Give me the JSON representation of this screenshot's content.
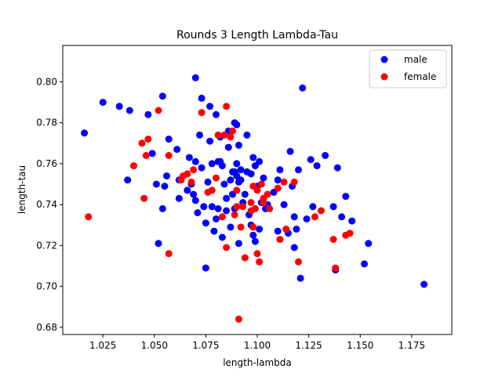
{
  "chart_data": {
    "type": "scatter",
    "title": "Rounds 3 Length Lambda-Tau",
    "xlabel": "length-lambda",
    "ylabel": "length-tau",
    "xlim": [
      1.0055,
      1.1945
    ],
    "ylim": [
      0.6765,
      0.8178
    ],
    "xticks": [
      "1.025",
      "1.050",
      "1.075",
      "1.100",
      "1.125",
      "1.150",
      "1.175"
    ],
    "yticks": [
      "0.68",
      "0.70",
      "0.72",
      "0.74",
      "0.76",
      "0.78",
      "0.80"
    ],
    "grid": false,
    "legend_position": "top-right",
    "series": [
      {
        "name": "male",
        "color": "#0000ff",
        "points": [
          [
            1.016,
            0.775
          ],
          [
            1.025,
            0.79
          ],
          [
            1.033,
            0.788
          ],
          [
            1.038,
            0.786
          ],
          [
            1.037,
            0.752
          ],
          [
            1.047,
            0.784
          ],
          [
            1.049,
            0.765
          ],
          [
            1.051,
            0.75
          ],
          [
            1.054,
            0.793
          ],
          [
            1.056,
            0.754
          ],
          [
            1.057,
            0.772
          ],
          [
            1.055,
            0.749
          ],
          [
            1.052,
            0.721
          ],
          [
            1.054,
            0.738
          ],
          [
            1.061,
            0.767
          ],
          [
            1.062,
            0.752
          ],
          [
            1.062,
            0.743
          ],
          [
            1.066,
            0.747
          ],
          [
            1.067,
            0.763
          ],
          [
            1.068,
            0.75
          ],
          [
            1.07,
            0.802
          ],
          [
            1.07,
            0.761
          ],
          [
            1.069,
            0.745
          ],
          [
            1.07,
            0.742
          ],
          [
            1.071,
            0.736
          ],
          [
            1.072,
            0.774
          ],
          [
            1.073,
            0.792
          ],
          [
            1.073,
            0.758
          ],
          [
            1.074,
            0.739
          ],
          [
            1.075,
            0.731
          ],
          [
            1.075,
            0.709
          ],
          [
            1.076,
            0.751
          ],
          [
            1.077,
            0.788
          ],
          [
            1.077,
            0.771
          ],
          [
            1.078,
            0.76
          ],
          [
            1.078,
            0.739
          ],
          [
            1.079,
            0.727
          ],
          [
            1.08,
            0.733
          ],
          [
            1.08,
            0.784
          ],
          [
            1.081,
            0.761
          ],
          [
            1.081,
            0.738
          ],
          [
            1.082,
            0.773
          ],
          [
            1.082,
            0.761
          ],
          [
            1.083,
            0.759
          ],
          [
            1.083,
            0.724
          ],
          [
            1.084,
            0.75
          ],
          [
            1.085,
            0.743
          ],
          [
            1.085,
            0.737
          ],
          [
            1.086,
            0.768
          ],
          [
            1.086,
            0.776
          ],
          [
            1.087,
            0.752
          ],
          [
            1.087,
            0.729
          ],
          [
            1.088,
            0.756
          ],
          [
            1.088,
            0.745
          ],
          [
            1.089,
            0.78
          ],
          [
            1.089,
            0.756
          ],
          [
            1.089,
            0.738
          ],
          [
            1.09,
            0.779
          ],
          [
            1.09,
            0.76
          ],
          [
            1.09,
            0.754
          ],
          [
            1.091,
            0.751
          ],
          [
            1.091,
            0.769
          ],
          [
            1.091,
            0.721
          ],
          [
            1.092,
            0.757
          ],
          [
            1.092,
            0.752
          ],
          [
            1.093,
            0.741
          ],
          [
            1.094,
            0.745
          ],
          [
            1.095,
            0.774
          ],
          [
            1.095,
            0.756
          ],
          [
            1.096,
            0.735
          ],
          [
            1.097,
            0.755
          ],
          [
            1.097,
            0.73
          ],
          [
            1.098,
            0.763
          ],
          [
            1.098,
            0.725
          ],
          [
            1.099,
            0.759
          ],
          [
            1.099,
            0.722
          ],
          [
            1.1,
            0.749
          ],
          [
            1.101,
            0.761
          ],
          [
            1.101,
            0.728
          ],
          [
            1.102,
            0.741
          ],
          [
            1.103,
            0.753
          ],
          [
            1.104,
            0.738
          ],
          [
            1.105,
            0.74
          ],
          [
            1.108,
            0.746
          ],
          [
            1.11,
            0.752
          ],
          [
            1.11,
            0.727
          ],
          [
            1.111,
            0.757
          ],
          [
            1.113,
            0.74
          ],
          [
            1.115,
            0.726
          ],
          [
            1.116,
            0.766
          ],
          [
            1.117,
            0.749
          ],
          [
            1.118,
            0.719
          ],
          [
            1.118,
            0.734
          ],
          [
            1.119,
            0.728
          ],
          [
            1.12,
            0.757
          ],
          [
            1.121,
            0.704
          ],
          [
            1.122,
            0.797
          ],
          [
            1.124,
            0.733
          ],
          [
            1.126,
            0.762
          ],
          [
            1.127,
            0.739
          ],
          [
            1.129,
            0.759
          ],
          [
            1.133,
            0.764
          ],
          [
            1.137,
            0.739
          ],
          [
            1.138,
            0.708
          ],
          [
            1.139,
            0.758
          ],
          [
            1.141,
            0.734
          ],
          [
            1.143,
            0.744
          ],
          [
            1.146,
            0.732
          ],
          [
            1.152,
            0.711
          ],
          [
            1.154,
            0.721
          ],
          [
            1.181,
            0.701
          ]
        ]
      },
      {
        "name": "female",
        "color": "#ff0000",
        "points": [
          [
            1.018,
            0.734
          ],
          [
            1.04,
            0.759
          ],
          [
            1.044,
            0.77
          ],
          [
            1.045,
            0.743
          ],
          [
            1.046,
            0.764
          ],
          [
            1.047,
            0.772
          ],
          [
            1.052,
            0.786
          ],
          [
            1.057,
            0.764
          ],
          [
            1.057,
            0.716
          ],
          [
            1.063,
            0.752
          ],
          [
            1.064,
            0.754
          ],
          [
            1.066,
            0.755
          ],
          [
            1.068,
            0.751
          ],
          [
            1.069,
            0.757
          ],
          [
            1.073,
            0.785
          ],
          [
            1.076,
            0.746
          ],
          [
            1.078,
            0.747
          ],
          [
            1.08,
            0.753
          ],
          [
            1.081,
            0.774
          ],
          [
            1.083,
            0.734
          ],
          [
            1.084,
            0.774
          ],
          [
            1.085,
            0.788
          ],
          [
            1.085,
            0.719
          ],
          [
            1.087,
            0.773
          ],
          [
            1.088,
            0.776
          ],
          [
            1.089,
            0.735
          ],
          [
            1.09,
            0.747
          ],
          [
            1.09,
            0.739
          ],
          [
            1.091,
            0.684
          ],
          [
            1.092,
            0.729
          ],
          [
            1.093,
            0.739
          ],
          [
            1.094,
            0.714
          ],
          [
            1.097,
            0.741
          ],
          [
            1.097,
            0.737
          ],
          [
            1.098,
            0.749
          ],
          [
            1.098,
            0.729
          ],
          [
            1.099,
            0.738
          ],
          [
            1.1,
            0.747
          ],
          [
            1.1,
            0.716
          ],
          [
            1.101,
            0.712
          ],
          [
            1.102,
            0.75
          ],
          [
            1.103,
            0.743
          ],
          [
            1.103,
            0.741
          ],
          [
            1.105,
            0.745
          ],
          [
            1.106,
            0.738
          ],
          [
            1.11,
            0.748
          ],
          [
            1.111,
            0.723
          ],
          [
            1.113,
            0.751
          ],
          [
            1.114,
            0.728
          ],
          [
            1.118,
            0.751
          ],
          [
            1.12,
            0.712
          ],
          [
            1.128,
            0.734
          ],
          [
            1.131,
            0.737
          ],
          [
            1.137,
            0.723
          ],
          [
            1.138,
            0.709
          ],
          [
            1.143,
            0.725
          ],
          [
            1.145,
            0.726
          ]
        ]
      }
    ]
  }
}
